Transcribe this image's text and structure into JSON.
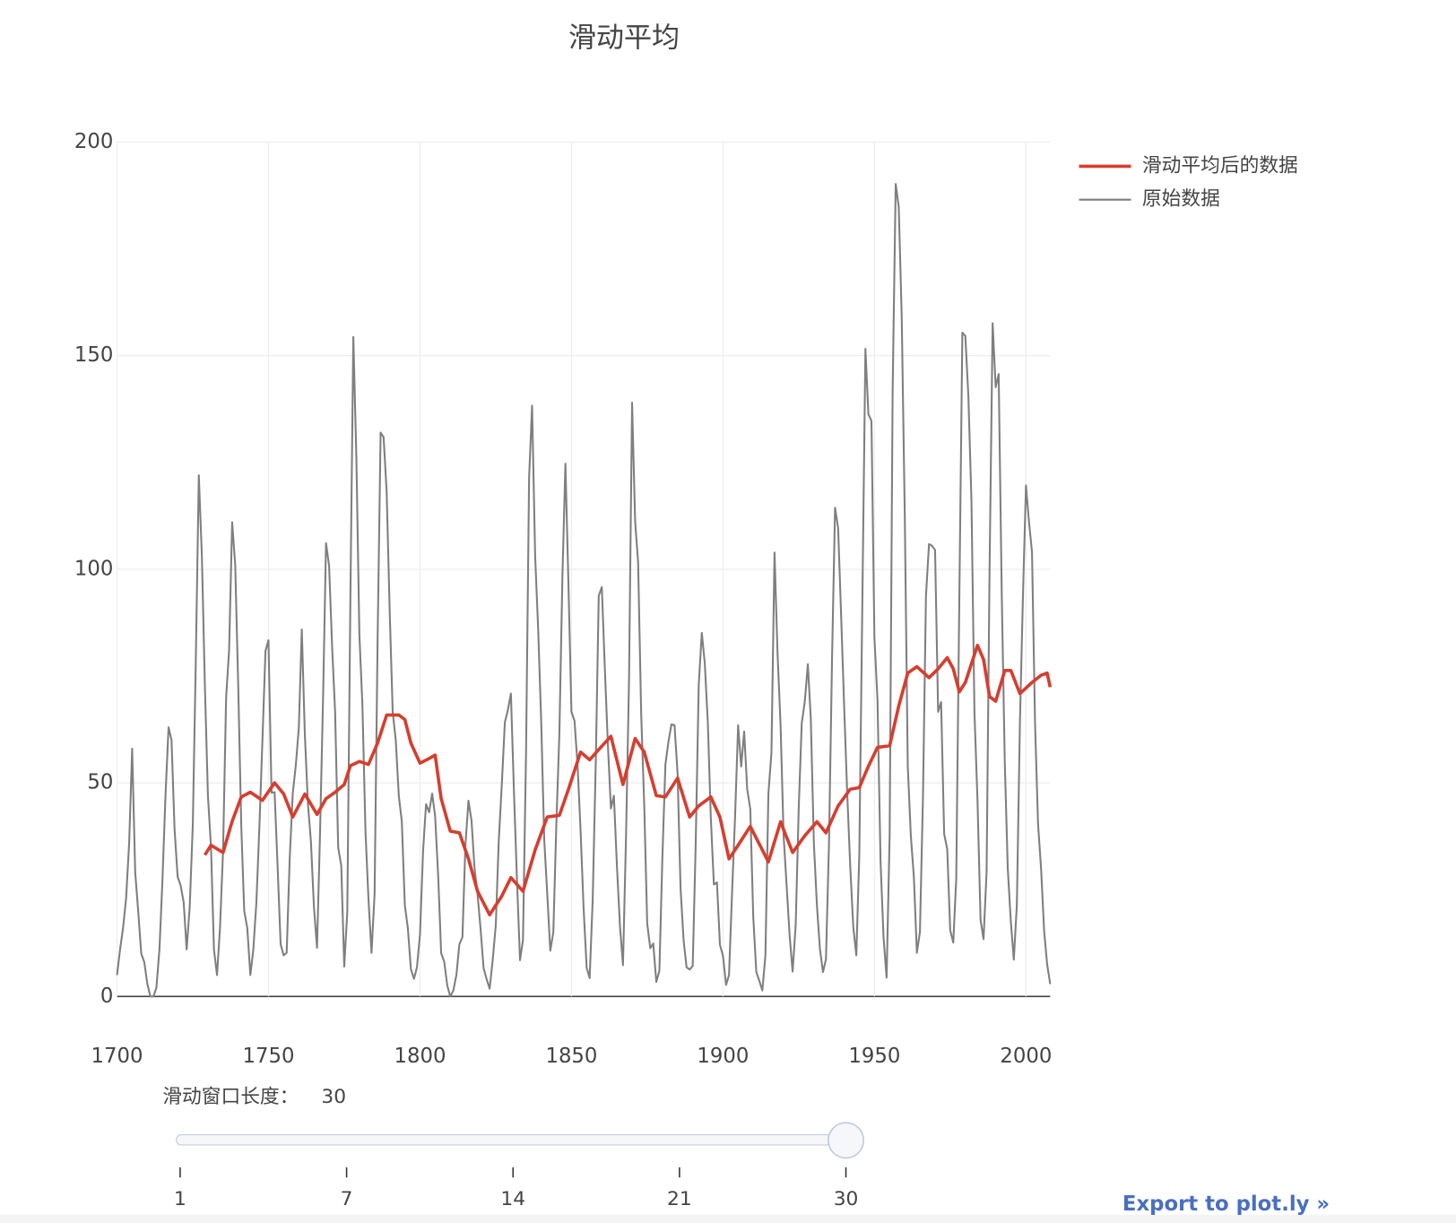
{
  "chart_data": {
    "type": "line",
    "title": "滑动平均",
    "xlim": [
      1700,
      2008
    ],
    "xticks": [
      1700,
      1750,
      1800,
      1850,
      1900,
      1950,
      2000
    ],
    "ylim": [
      0,
      200
    ],
    "yticks": [
      0,
      50,
      100,
      150,
      200
    ],
    "grid": true,
    "legend": "top-right",
    "series": [
      {
        "name": "滑动平均后的数据",
        "color": "#d63e2f",
        "x": [
          1729,
          1731,
          1735,
          1738,
          1741,
          1744,
          1748,
          1752,
          1755,
          1758,
          1762,
          1766,
          1769,
          1772,
          1775,
          1777,
          1780,
          1783,
          1786,
          1789,
          1793,
          1795,
          1797,
          1800,
          1803,
          1805,
          1807,
          1810,
          1813,
          1816,
          1819,
          1823,
          1827,
          1830,
          1834,
          1838,
          1842,
          1846,
          1849,
          1853,
          1856,
          1859,
          1863,
          1867,
          1871,
          1874,
          1878,
          1881,
          1885,
          1889,
          1892,
          1896,
          1899,
          1902,
          1905,
          1909,
          1915,
          1919,
          1923,
          1927,
          1931,
          1934,
          1938,
          1942,
          1945,
          1948,
          1951,
          1955,
          1958,
          1961,
          1964,
          1968,
          1971,
          1974,
          1976,
          1978,
          1980,
          1984,
          1986,
          1988,
          1990,
          1993,
          1995,
          1998,
          2002,
          2005,
          2007,
          2008
        ],
        "values": [
          33.1,
          35.4,
          33.7,
          41,
          46.7,
          47.8,
          45.9,
          50,
          47.4,
          42,
          47.4,
          42.6,
          46.3,
          47.8,
          49.6,
          54,
          55,
          54.3,
          59.3,
          65.9,
          65.9,
          64.8,
          59.3,
          54.6,
          55.7,
          56.5,
          46.3,
          38.7,
          38.3,
          32.2,
          24.6,
          19.1,
          23.5,
          27.8,
          24.6,
          34.3,
          42,
          42.4,
          48.5,
          57.2,
          55.4,
          57.8,
          60.9,
          49.6,
          60.4,
          57.2,
          47,
          46.7,
          51.1,
          42,
          44.6,
          46.7,
          42,
          32.2,
          35.4,
          39.8,
          31.5,
          40.9,
          33.7,
          37.6,
          40.9,
          38.3,
          44.6,
          48.5,
          48.9,
          53.9,
          58.3,
          58.7,
          68,
          75.7,
          77.2,
          74.6,
          76.7,
          79.3,
          76.7,
          71.3,
          73.5,
          82.2,
          78.9,
          70.2,
          69.1,
          76.3,
          76.3,
          70.9,
          73.5,
          75.2,
          75.7,
          72.4
        ]
      },
      {
        "name": "原始数据",
        "color": "#7f7f7f",
        "x": [
          1700,
          1701,
          1702,
          1703,
          1704,
          1705,
          1706,
          1707,
          1708,
          1709,
          1710,
          1711,
          1712,
          1713,
          1714,
          1715,
          1716,
          1717,
          1718,
          1719,
          1720,
          1721,
          1722,
          1723,
          1724,
          1725,
          1726,
          1727,
          1728,
          1729,
          1730,
          1731,
          1732,
          1733,
          1734,
          1735,
          1736,
          1737,
          1738,
          1739,
          1740,
          1741,
          1742,
          1743,
          1744,
          1745,
          1746,
          1747,
          1748,
          1749,
          1750,
          1751,
          1752,
          1753,
          1754,
          1755,
          1756,
          1757,
          1758,
          1759,
          1760,
          1761,
          1762,
          1763,
          1764,
          1765,
          1766,
          1767,
          1768,
          1769,
          1770,
          1771,
          1772,
          1773,
          1774,
          1775,
          1776,
          1777,
          1778,
          1779,
          1780,
          1781,
          1782,
          1783,
          1784,
          1785,
          1786,
          1787,
          1788,
          1789,
          1790,
          1791,
          1792,
          1793,
          1794,
          1795,
          1796,
          1797,
          1798,
          1799,
          1800,
          1801,
          1802,
          1803,
          1804,
          1805,
          1806,
          1807,
          1808,
          1809,
          1810,
          1811,
          1812,
          1813,
          1814,
          1815,
          1816,
          1817,
          1818,
          1819,
          1820,
          1821,
          1822,
          1823,
          1824,
          1825,
          1826,
          1827,
          1828,
          1829,
          1830,
          1831,
          1832,
          1833,
          1834,
          1835,
          1836,
          1837,
          1838,
          1839,
          1840,
          1841,
          1842,
          1843,
          1844,
          1845,
          1846,
          1847,
          1848,
          1849,
          1850,
          1851,
          1852,
          1853,
          1854,
          1855,
          1856,
          1857,
          1858,
          1859,
          1860,
          1861,
          1862,
          1863,
          1864,
          1865,
          1866,
          1867,
          1868,
          1869,
          1870,
          1871,
          1872,
          1873,
          1874,
          1875,
          1876,
          1877,
          1878,
          1879,
          1880,
          1881,
          1882,
          1883,
          1884,
          1885,
          1886,
          1887,
          1888,
          1889,
          1890,
          1891,
          1892,
          1893,
          1894,
          1895,
          1896,
          1897,
          1898,
          1899,
          1900,
          1901,
          1902,
          1903,
          1904,
          1905,
          1906,
          1907,
          1908,
          1909,
          1910,
          1911,
          1912,
          1913,
          1914,
          1915,
          1916,
          1917,
          1918,
          1919,
          1920,
          1921,
          1922,
          1923,
          1924,
          1925,
          1926,
          1927,
          1928,
          1929,
          1930,
          1931,
          1932,
          1933,
          1934,
          1935,
          1936,
          1937,
          1938,
          1939,
          1940,
          1941,
          1942,
          1943,
          1944,
          1945,
          1946,
          1947,
          1948,
          1949,
          1950,
          1951,
          1952,
          1953,
          1954,
          1955,
          1956,
          1957,
          1958,
          1959,
          1960,
          1961,
          1962,
          1963,
          1964,
          1965,
          1966,
          1967,
          1968,
          1969,
          1970,
          1971,
          1972,
          1973,
          1974,
          1975,
          1976,
          1977,
          1978,
          1979,
          1980,
          1981,
          1982,
          1983,
          1984,
          1985,
          1986,
          1987,
          1988,
          1989,
          1990,
          1991,
          1992,
          1993,
          1994,
          1995,
          1996,
          1997,
          1998,
          1999,
          2000,
          2001,
          2002,
          2003,
          2004,
          2005,
          2006,
          2007,
          2008
        ],
        "values": [
          5,
          11,
          16,
          23,
          36,
          58,
          29,
          20,
          10,
          8,
          3,
          0,
          0,
          2,
          11,
          27,
          47,
          63,
          60,
          39,
          28,
          26,
          22,
          11,
          21,
          40,
          78,
          122,
          103,
          73,
          47,
          35,
          11,
          5,
          16,
          34,
          70,
          81,
          111,
          101,
          73,
          40,
          20,
          16,
          5,
          11,
          22,
          40,
          60,
          80.9,
          83.4,
          47.7,
          47.8,
          30.7,
          12.2,
          9.6,
          10.2,
          32.4,
          47.6,
          54.0,
          62.9,
          85.9,
          61.2,
          45.1,
          36.4,
          20.9,
          11.4,
          37.8,
          69.8,
          106.1,
          100.8,
          81.6,
          66.5,
          34.8,
          30.6,
          7.0,
          19.8,
          92.5,
          154.4,
          125.9,
          84.8,
          68.1,
          38.5,
          22.8,
          10.2,
          24.1,
          82.9,
          132.0,
          130.9,
          118.1,
          89.9,
          66.6,
          60.0,
          46.9,
          41.0,
          21.3,
          16.0,
          6.4,
          4.1,
          6.8,
          14.5,
          34.0,
          45.0,
          43.1,
          47.5,
          42.2,
          28.1,
          10.1,
          8.1,
          2.5,
          0.0,
          1.4,
          5.0,
          12.2,
          13.9,
          35.4,
          45.8,
          41.1,
          30.1,
          23.9,
          15.6,
          6.6,
          4.0,
          1.8,
          8.5,
          16.6,
          36.3,
          49.6,
          64.2,
          67.0,
          70.9,
          47.8,
          27.5,
          8.5,
          13.2,
          56.9,
          121.5,
          138.3,
          103.2,
          85.7,
          64.6,
          36.7,
          24.2,
          10.7,
          15.0,
          40.1,
          61.5,
          98.5,
          124.7,
          96.3,
          66.6,
          64.5,
          54.1,
          39.0,
          20.6,
          6.7,
          4.3,
          22.7,
          54.8,
          93.8,
          95.8,
          77.2,
          59.1,
          44.0,
          47.0,
          30.5,
          16.3,
          7.3,
          37.6,
          74.0,
          139.0,
          111.2,
          101.6,
          66.2,
          44.7,
          17.0,
          11.3,
          12.4,
          3.4,
          6.0,
          32.3,
          54.3,
          59.7,
          63.7,
          63.5,
          52.2,
          25.4,
          13.1,
          6.8,
          6.3,
          7.1,
          35.6,
          73.0,
          85.1,
          78.0,
          64.0,
          41.8,
          26.2,
          26.7,
          12.1,
          9.5,
          2.7,
          5.0,
          24.4,
          42.0,
          63.5,
          53.8,
          62.0,
          48.5,
          43.9,
          18.6,
          5.7,
          3.6,
          1.4,
          9.6,
          47.4,
          57.1,
          103.9,
          80.6,
          63.6,
          37.6,
          26.1,
          14.2,
          5.8,
          16.7,
          44.3,
          63.9,
          69.0,
          77.8,
          64.9,
          35.7,
          21.2,
          11.1,
          5.7,
          8.7,
          36.1,
          79.7,
          114.4,
          109.6,
          88.8,
          67.8,
          47.5,
          30.6,
          16.3,
          9.6,
          33.2,
          92.6,
          151.6,
          136.3,
          134.7,
          83.9,
          69.4,
          31.5,
          13.9,
          4.4,
          38.0,
          141.7,
          190.2,
          184.8,
          159.0,
          112.3,
          53.9,
          37.6,
          27.9,
          10.2,
          15.1,
          47.0,
          93.8,
          105.9,
          105.5,
          104.5,
          66.6,
          68.9,
          38.0,
          34.5,
          15.5,
          12.6,
          27.5,
          92.5,
          155.4,
          154.6,
          140.4,
          115.9,
          66.6,
          45.9,
          17.9,
          13.4,
          29.2,
          100.2,
          157.6,
          142.6,
          145.7,
          94.3,
          54.6,
          29.9,
          17.5,
          8.6,
          21.5,
          64.3,
          93.3,
          119.6,
          111.0,
          104.0,
          63.7,
          40.4,
          29.8,
          15.2,
          7.5,
          2.9
        ]
      }
    ]
  },
  "slider": {
    "label": "滑动窗口长度：",
    "value": 30,
    "ticks": [
      1,
      7,
      14,
      21,
      30
    ]
  },
  "export_link": "Export to plot.ly »"
}
